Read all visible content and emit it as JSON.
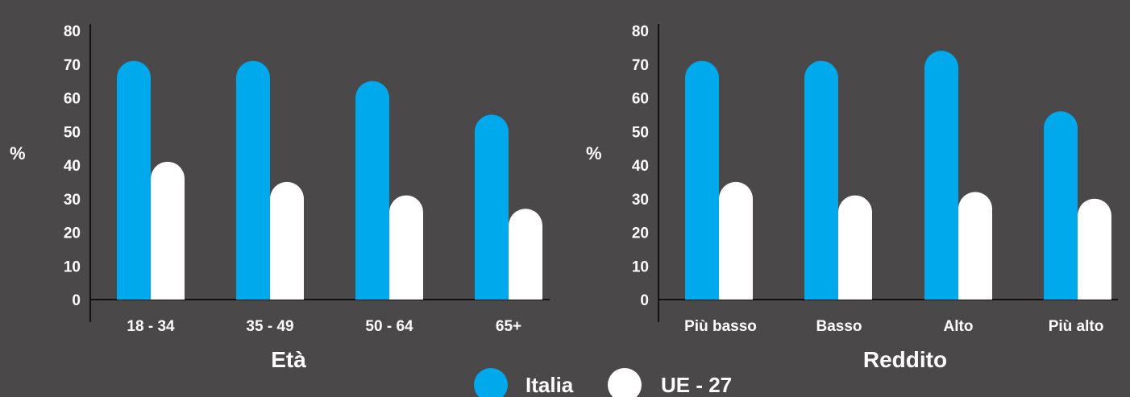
{
  "colors": {
    "background": "#4b4849",
    "italia": "#00a8ec",
    "ue27": "#ffffff",
    "axis": "#111111"
  },
  "legend": [
    {
      "name": "Italia",
      "color": "#00a8ec"
    },
    {
      "name": "UE - 27",
      "color": "#ffffff"
    }
  ],
  "chart_data": [
    {
      "type": "bar",
      "xlabel": "Età",
      "ylabel": "%",
      "ylim": [
        0,
        80
      ],
      "yticks": [
        0,
        10,
        20,
        30,
        40,
        50,
        60,
        70,
        80
      ],
      "categories": [
        "18 - 34",
        "35 - 49",
        "50 - 64",
        "65+"
      ],
      "series": [
        {
          "name": "Italia",
          "values": [
            71,
            71,
            65,
            55
          ]
        },
        {
          "name": "UE - 27",
          "values": [
            41,
            35,
            31,
            27
          ]
        }
      ],
      "grid": false,
      "legend_position": "bottom-center"
    },
    {
      "type": "bar",
      "xlabel": "Reddito",
      "ylabel": "%",
      "ylim": [
        0,
        80
      ],
      "yticks": [
        0,
        10,
        20,
        30,
        40,
        50,
        60,
        70,
        80
      ],
      "categories": [
        "Più basso",
        "Basso",
        "Alto",
        "Più alto"
      ],
      "series": [
        {
          "name": "Italia",
          "values": [
            71,
            71,
            74,
            56
          ]
        },
        {
          "name": "UE - 27",
          "values": [
            35,
            31,
            32,
            30
          ]
        }
      ],
      "grid": false,
      "legend_position": "bottom-center"
    }
  ]
}
